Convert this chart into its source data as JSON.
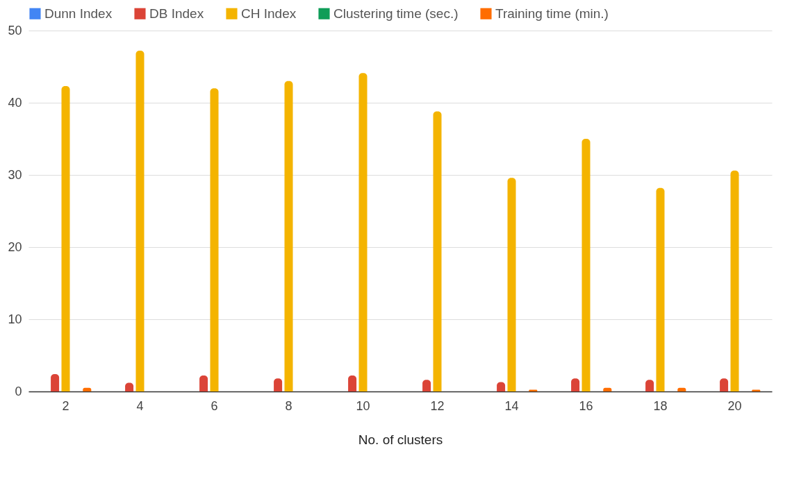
{
  "chart_data": {
    "type": "bar",
    "xlabel": "No. of clusters",
    "categories": [
      "2",
      "4",
      "6",
      "8",
      "10",
      "12",
      "14",
      "16",
      "18",
      "20"
    ],
    "series": [
      {
        "name": "Dunn Index",
        "color": "#4285f4",
        "values": [
          0,
          0,
          0,
          0,
          0,
          0,
          0,
          0,
          0,
          0
        ]
      },
      {
        "name": "DB Index",
        "color": "#db4437",
        "values": [
          2.4,
          1.2,
          2.2,
          1.8,
          2.2,
          1.6,
          1.3,
          1.8,
          1.6,
          1.8
        ]
      },
      {
        "name": "CH Index",
        "color": "#f4b400",
        "values": [
          42.3,
          47.2,
          42.0,
          43.0,
          44.1,
          38.8,
          29.6,
          35.0,
          28.2,
          30.6
        ]
      },
      {
        "name": "Clustering time (sec.)",
        "color": "#0f9d58",
        "values": [
          0,
          0,
          0,
          0,
          0,
          0,
          0,
          0,
          0,
          0
        ]
      },
      {
        "name": "Training time (min.)",
        "color": "#ff6d00",
        "values": [
          0.5,
          0,
          0,
          0,
          0,
          0,
          0.25,
          0.5,
          0.5,
          0.25
        ]
      }
    ],
    "ylim": [
      0,
      50
    ],
    "yticks": [
      0,
      10,
      20,
      30,
      40,
      50
    ],
    "grid": "y",
    "legend": "top"
  }
}
